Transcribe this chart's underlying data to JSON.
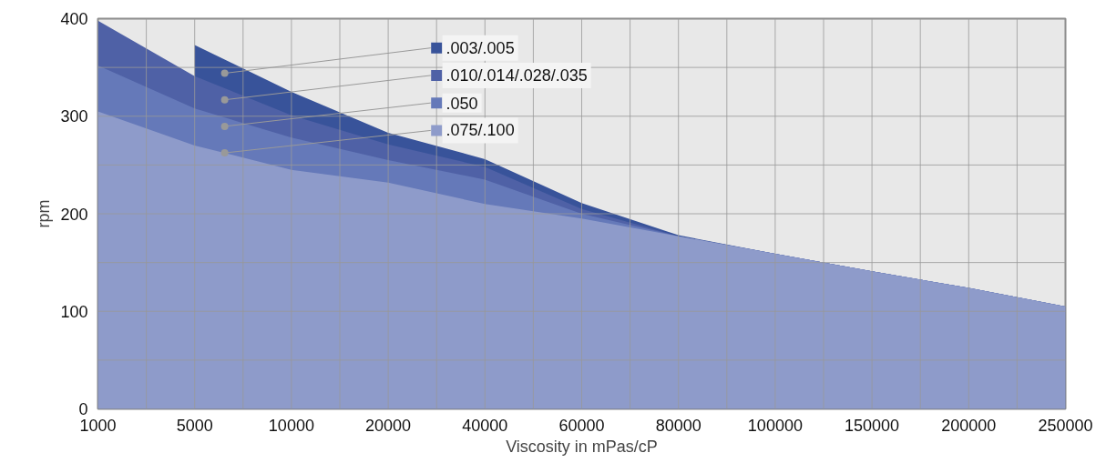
{
  "chart_data": {
    "type": "area",
    "xlabel": "Viscosity in mPas/cP",
    "ylabel": "rpm",
    "categories": [
      "1000",
      "5000",
      "10000",
      "20000",
      "40000",
      "60000",
      "80000",
      "100000",
      "150000",
      "200000",
      "250000"
    ],
    "ylim": [
      0,
      400
    ],
    "yticks": [
      0,
      {
        "value": 50,
        "label": null
      },
      100,
      {
        "value": 150,
        "label": null
      },
      200,
      {
        "value": 250,
        "label": null
      },
      300,
      {
        "value": 350,
        "label": null
      },
      400
    ],
    "grid": true,
    "legend": "top",
    "series": [
      {
        "name": ".003/.005",
        "color": "#38539a",
        "values": [
          null,
          373,
          325,
          283,
          256,
          211,
          178,
          159,
          141,
          124,
          105
        ]
      },
      {
        "name": ".010/.014/.028/.035",
        "color": "#4f61a6",
        "values": [
          398,
          341,
          301,
          271,
          248,
          205,
          177,
          159,
          141,
          124,
          105
        ]
      },
      {
        "name": ".050",
        "color": "#6579b9",
        "values": [
          352,
          308,
          278,
          255,
          235,
          200,
          177,
          159,
          141,
          124,
          105
        ]
      },
      {
        "name": ".075/.100",
        "color": "#8e9bca",
        "values": [
          305,
          270,
          245,
          232,
          210,
          195,
          177,
          159,
          141,
          124,
          105
        ]
      }
    ]
  }
}
